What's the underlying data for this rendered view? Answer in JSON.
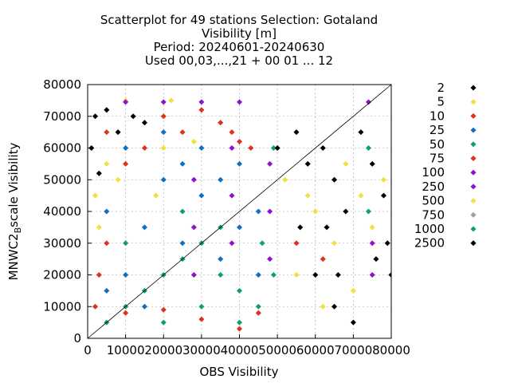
{
  "chart_data": {
    "type": "scatter",
    "title_lines": [
      "Scatterplot for   49 stations Selection: Gotaland",
      "Visibility [m]",
      "Period: 20240601-20240630",
      "Used 00,03,...,21 + 00 01 ... 12"
    ],
    "xlabel": "OBS Visibility",
    "ylabel_main": "MNWC2",
    "ylabel_sub": "B",
    "ylabel_rest": "scale Visibility",
    "xlim": [
      0,
      80000
    ],
    "ylim": [
      0,
      80000
    ],
    "xticks": [
      "0",
      "10000",
      "20000",
      "30000",
      "40000",
      "50000",
      "60000",
      "70000",
      "80000"
    ],
    "yticks": [
      "0",
      "10000",
      "20000",
      "30000",
      "40000",
      "50000",
      "60000",
      "70000",
      "80000"
    ],
    "grid": true,
    "diagonal": true,
    "legend_position": "right",
    "legend": [
      {
        "label": "2",
        "color": "#000000"
      },
      {
        "label": "5",
        "color": "#f0e040"
      },
      {
        "label": "10",
        "color": "#e03020"
      },
      {
        "label": "25",
        "color": "#1070c0"
      },
      {
        "label": "50",
        "color": "#10a070"
      },
      {
        "label": "75",
        "color": "#e03020"
      },
      {
        "label": "100",
        "color": "#9010d0"
      },
      {
        "label": "250",
        "color": "#9010d0"
      },
      {
        "label": "500",
        "color": "#f0e040"
      },
      {
        "label": "750",
        "color": "#a0a0a0"
      },
      {
        "label": "1000",
        "color": "#10a070"
      },
      {
        "label": "2500",
        "color": "#000000"
      }
    ],
    "series": [
      {
        "color": "#1070c0",
        "points": [
          [
            5000,
            40000
          ],
          [
            10000,
            20000
          ],
          [
            15000,
            35000
          ],
          [
            20000,
            50000
          ],
          [
            25000,
            30000
          ],
          [
            30000,
            45000
          ],
          [
            35000,
            25000
          ],
          [
            40000,
            55000
          ],
          [
            45000,
            40000
          ],
          [
            10000,
            60000
          ],
          [
            20000,
            65000
          ],
          [
            30000,
            60000
          ],
          [
            40000,
            35000
          ],
          [
            5000,
            15000
          ],
          [
            15000,
            10000
          ],
          [
            25000,
            55000
          ],
          [
            35000,
            50000
          ],
          [
            45000,
            20000
          ]
        ]
      },
      {
        "color": "#10a070",
        "points": [
          [
            5000,
            5000
          ],
          [
            10000,
            10000
          ],
          [
            15000,
            15000
          ],
          [
            20000,
            20000
          ],
          [
            25000,
            25000
          ],
          [
            30000,
            30000
          ],
          [
            35000,
            20000
          ],
          [
            40000,
            15000
          ],
          [
            45000,
            10000
          ],
          [
            20000,
            5000
          ],
          [
            30000,
            10000
          ],
          [
            40000,
            5000
          ],
          [
            10000,
            30000
          ],
          [
            25000,
            40000
          ],
          [
            35000,
            35000
          ],
          [
            46000,
            30000
          ],
          [
            49000,
            60000
          ],
          [
            49000,
            20000
          ],
          [
            74000,
            40000
          ],
          [
            74000,
            60000
          ]
        ]
      },
      {
        "color": "#e03020",
        "points": [
          [
            5000,
            65000
          ],
          [
            10000,
            55000
          ],
          [
            15000,
            60000
          ],
          [
            20000,
            70000
          ],
          [
            25000,
            65000
          ],
          [
            30000,
            72000
          ],
          [
            35000,
            68000
          ],
          [
            40000,
            62000
          ],
          [
            5000,
            30000
          ],
          [
            3000,
            20000
          ],
          [
            2000,
            10000
          ],
          [
            10000,
            8000
          ],
          [
            20000,
            9000
          ],
          [
            30000,
            6000
          ],
          [
            40000,
            3000
          ],
          [
            45000,
            8000
          ],
          [
            38000,
            65000
          ],
          [
            43000,
            60000
          ],
          [
            55000,
            30000
          ],
          [
            62000,
            25000
          ]
        ]
      },
      {
        "color": "#f0e040",
        "points": [
          [
            2000,
            45000
          ],
          [
            3000,
            35000
          ],
          [
            5000,
            55000
          ],
          [
            8000,
            50000
          ],
          [
            10000,
            75000
          ],
          [
            18000,
            45000
          ],
          [
            20000,
            60000
          ],
          [
            28000,
            62000
          ],
          [
            22000,
            75000
          ],
          [
            52000,
            50000
          ],
          [
            58000,
            45000
          ],
          [
            60000,
            40000
          ],
          [
            65000,
            30000
          ],
          [
            68000,
            55000
          ],
          [
            72000,
            45000
          ],
          [
            75000,
            35000
          ],
          [
            78000,
            50000
          ],
          [
            55000,
            20000
          ],
          [
            62000,
            10000
          ],
          [
            70000,
            15000
          ]
        ]
      },
      {
        "color": "#9010d0",
        "points": [
          [
            28000,
            20000
          ],
          [
            28000,
            35000
          ],
          [
            28000,
            50000
          ],
          [
            38000,
            30000
          ],
          [
            38000,
            45000
          ],
          [
            38000,
            60000
          ],
          [
            48000,
            25000
          ],
          [
            48000,
            40000
          ],
          [
            48000,
            55000
          ],
          [
            75000,
            20000
          ],
          [
            75000,
            30000
          ],
          [
            10000,
            74500
          ],
          [
            20000,
            74500
          ],
          [
            30000,
            74500
          ],
          [
            40000,
            74500
          ],
          [
            74000,
            74500
          ]
        ]
      },
      {
        "color": "#000000",
        "points": [
          [
            1000,
            60000
          ],
          [
            2000,
            70000
          ],
          [
            3000,
            52000
          ],
          [
            5000,
            72000
          ],
          [
            8000,
            65000
          ],
          [
            12000,
            70000
          ],
          [
            15000,
            68000
          ],
          [
            50000,
            60000
          ],
          [
            55000,
            65000
          ],
          [
            58000,
            55000
          ],
          [
            62000,
            60000
          ],
          [
            65000,
            50000
          ],
          [
            68000,
            40000
          ],
          [
            72000,
            65000
          ],
          [
            75000,
            55000
          ],
          [
            78000,
            45000
          ],
          [
            79000,
            30000
          ],
          [
            60000,
            20000
          ],
          [
            65000,
            10000
          ],
          [
            70000,
            5000
          ],
          [
            56000,
            35000
          ],
          [
            63000,
            35000
          ],
          [
            66000,
            20000
          ],
          [
            76000,
            25000
          ],
          [
            80000,
            20000
          ]
        ]
      }
    ]
  }
}
